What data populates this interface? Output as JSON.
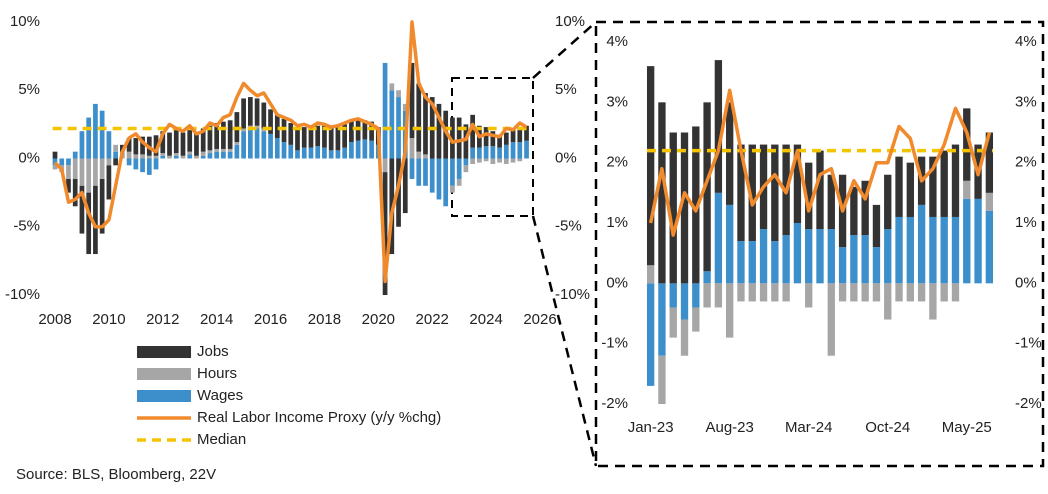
{
  "chart_data": [
    {
      "type": "bar-line",
      "x": [
        2008,
        2008.25,
        2008.5,
        2008.75,
        2009,
        2009.25,
        2009.5,
        2009.75,
        2010,
        2010.25,
        2010.5,
        2010.75,
        2011,
        2011.25,
        2011.5,
        2011.75,
        2012,
        2012.25,
        2012.5,
        2012.75,
        2013,
        2013.25,
        2013.5,
        2013.75,
        2014,
        2014.25,
        2014.5,
        2014.75,
        2015,
        2015.25,
        2015.5,
        2015.75,
        2016,
        2016.25,
        2016.5,
        2016.75,
        2017,
        2017.25,
        2017.5,
        2017.75,
        2018,
        2018.25,
        2018.5,
        2018.75,
        2019,
        2019.25,
        2019.5,
        2019.75,
        2020,
        2020.25,
        2020.5,
        2020.75,
        2021,
        2021.25,
        2021.5,
        2021.75,
        2022,
        2022.25,
        2022.5,
        2022.75,
        2023,
        2023.25,
        2023.5,
        2023.75,
        2024,
        2024.25,
        2024.5,
        2024.75,
        2025,
        2025.25,
        2025.5
      ],
      "series": [
        {
          "name": "Jobs",
          "color": "#333333",
          "values": [
            0.5,
            0,
            -1,
            -2,
            -3.5,
            -4.5,
            -5,
            -4,
            -2.5,
            -0.5,
            0.5,
            1,
            1.2,
            1.3,
            1.4,
            1.5,
            1.6,
            1.7,
            1.7,
            1.7,
            1.6,
            1.7,
            1.7,
            1.8,
            1.9,
            2,
            2.1,
            2.2,
            2.2,
            2.1,
            2,
            1.9,
            1.8,
            1.7,
            1.7,
            1.6,
            1.6,
            1.5,
            1.5,
            1.5,
            1.6,
            1.7,
            1.7,
            1.7,
            1.6,
            1.5,
            1.4,
            1.4,
            1.3,
            -9,
            -7,
            -5,
            -4,
            5.5,
            5,
            4.5,
            4.5,
            4,
            3.5,
            3,
            3,
            2.5,
            2.4,
            1.6,
            1.4,
            1.1,
            0.9,
            0.9,
            0.9,
            1.1,
            1.1
          ]
        },
        {
          "name": "Hours",
          "color": "#a6a6a6",
          "values": [
            -0.3,
            -0.5,
            -1,
            -1.5,
            -2,
            -2.5,
            -2,
            -1.5,
            -0.5,
            0.5,
            0.5,
            0.5,
            0.3,
            0.3,
            0.2,
            0.2,
            0.2,
            0.2,
            0.2,
            0.2,
            0.2,
            0.2,
            0.3,
            0.2,
            0.2,
            0.2,
            0.2,
            0.2,
            0.2,
            0.2,
            0.2,
            0.2,
            0,
            0,
            0,
            0,
            0,
            0,
            0,
            0,
            0,
            0,
            0,
            0,
            0,
            0,
            0,
            0,
            0,
            -1,
            0.5,
            0.5,
            0.5,
            1.5,
            0.5,
            0.3,
            0,
            0,
            0,
            -0.5,
            -0.5,
            -0.5,
            -0.4,
            -0.3,
            -0.2,
            -0.4,
            -0.3,
            -0.4,
            -0.3,
            -0.2,
            0
          ]
        },
        {
          "name": "Wages",
          "color": "#3d8fcc",
          "values": [
            -0.5,
            -0.5,
            -0.5,
            0.5,
            2,
            3,
            4,
            3.5,
            2,
            0.5,
            0,
            -0.5,
            -0.8,
            -1,
            -1.2,
            -0.8,
            0.2,
            0,
            0.2,
            0,
            0.3,
            0,
            0.2,
            0.4,
            0.5,
            0.5,
            0.5,
            1,
            2,
            2.2,
            2.2,
            2,
            1.8,
            1.5,
            1.2,
            1,
            0.6,
            0.8,
            0.8,
            0.9,
            0.8,
            0.6,
            0.6,
            0.8,
            1.2,
            1.3,
            1.4,
            1.3,
            1,
            7,
            5,
            4.5,
            3.5,
            -1.5,
            -2,
            -2,
            -2.5,
            -3,
            -3.5,
            -2,
            -1.5,
            -0.5,
            0.8,
            0.8,
            0.9,
            0.9,
            0.8,
            1,
            1.2,
            1.2,
            1.3
          ]
        },
        {
          "name": "Real Labor Income Proxy (y/y %chg)",
          "color": "#f08a2c",
          "kind": "line",
          "values": [
            -0.3,
            -0.8,
            -3.2,
            -3,
            -2.5,
            -4,
            -5,
            -5,
            -4.5,
            -2,
            0.5,
            1.5,
            1.8,
            1.2,
            0.8,
            0.5,
            1.8,
            2.5,
            2.2,
            2,
            2.4,
            1.8,
            2,
            2.6,
            2.4,
            3,
            3.2,
            4.5,
            5.5,
            5,
            4.6,
            4.8,
            4,
            3.2,
            3,
            2.8,
            2.4,
            2.5,
            2.3,
            2.6,
            2.5,
            2.3,
            2.4,
            2.6,
            2.8,
            2.9,
            2.7,
            2.5,
            2.2,
            -9,
            -4,
            -2,
            0.5,
            10,
            5.5,
            4.5,
            4,
            3,
            2,
            1.2,
            1.3,
            1.4,
            2.5,
            1.6,
            1.8,
            1.7,
            1.6,
            2.2,
            2.1,
            2.6,
            2.3
          ]
        }
      ],
      "median": {
        "name": "Median",
        "color": "#f5c400",
        "value": 2.2
      },
      "xlim": [
        2008,
        2026
      ],
      "xticks": [
        2008,
        2010,
        2012,
        2014,
        2016,
        2018,
        2020,
        2022,
        2024,
        2026
      ],
      "ylim": [
        -10,
        10
      ],
      "yticks": [
        {
          "value": 10,
          "label": "10%"
        },
        {
          "value": 5,
          "label": "5%"
        },
        {
          "value": 0,
          "label": "0%"
        },
        {
          "value": -5,
          "label": "-5%"
        },
        {
          "value": -10,
          "label": "-10%"
        }
      ],
      "y2lim": [
        -10,
        10
      ],
      "y2ticks": [
        {
          "value": 10,
          "label": "10%"
        },
        {
          "value": 5,
          "label": "5%"
        },
        {
          "value": 0,
          "label": "0%"
        },
        {
          "value": -5,
          "label": "-5%"
        },
        {
          "value": -10,
          "label": "-10%"
        }
      ],
      "legend": "bottom-left"
    },
    {
      "type": "bar-line",
      "categories": [
        "Jan-23",
        null,
        null,
        null,
        null,
        null,
        null,
        "Aug-23",
        null,
        null,
        null,
        null,
        null,
        null,
        "Mar-24",
        null,
        null,
        null,
        null,
        null,
        null,
        "Oct-24",
        null,
        null,
        null,
        null,
        null,
        null,
        "May-25",
        null,
        null
      ],
      "series": [
        {
          "color": "#333333",
          "values": [
            3.3,
            3,
            2.5,
            2.5,
            2.6,
            2.8,
            2.2,
            1.7,
            1.6,
            1.6,
            1.4,
            1.6,
            1.5,
            1.3,
            1.1,
            1.3,
            0.9,
            1.2,
            0.8,
            0.9,
            0.7,
            0.9,
            1,
            0.9,
            0.8,
            1,
            1.1,
            1.2,
            1.2,
            0.9,
            1
          ]
        },
        {
          "color": "#a6a6a6",
          "values": [
            0.3,
            -0.8,
            -0.5,
            -0.6,
            -0.4,
            -0.4,
            -0.4,
            -0.9,
            -0.3,
            -0.3,
            -0.3,
            -0.3,
            -0.3,
            0,
            -0.4,
            0,
            -1.2,
            -0.3,
            -0.3,
            -0.3,
            -0.3,
            -0.6,
            -0.3,
            -0.3,
            -0.3,
            -0.6,
            -0.3,
            -0.3,
            0.3,
            0,
            0.3
          ]
        },
        {
          "color": "#3d8fcc",
          "values": [
            -1.7,
            -1.2,
            -0.4,
            -0.6,
            -0.4,
            0.2,
            1.5,
            1.3,
            0.7,
            0.7,
            0.9,
            0.7,
            0.8,
            1,
            0.9,
            0.9,
            0.9,
            0.6,
            0.8,
            0.8,
            0.6,
            0.9,
            1.1,
            1.1,
            1.3,
            1.1,
            1.1,
            1.1,
            1.4,
            1.4,
            1.2
          ]
        },
        {
          "color": "#f08a2c",
          "kind": "line",
          "values": [
            1,
            1.9,
            0.8,
            1.5,
            1.2,
            1.7,
            2.2,
            3.2,
            2.2,
            1.3,
            1.6,
            1.8,
            1.5,
            2.2,
            1.2,
            1.8,
            1.9,
            1.2,
            1.7,
            1.4,
            2,
            2,
            2.6,
            2.4,
            1.7,
            1.9,
            2.3,
            2.9,
            2.5,
            1.8,
            2.5
          ]
        }
      ],
      "median": {
        "color": "#f5c400",
        "value": 2.2
      },
      "ylim": [
        -2,
        4
      ],
      "yticks": [
        {
          "value": 4,
          "label": "4%"
        },
        {
          "value": 3,
          "label": "3%"
        },
        {
          "value": 2,
          "label": "2%"
        },
        {
          "value": 1,
          "label": "1%"
        },
        {
          "value": 0,
          "label": "0%"
        },
        {
          "value": -1,
          "label": "-1%"
        },
        {
          "value": -2,
          "label": "-2%"
        }
      ],
      "y2lim": [
        -2,
        4
      ],
      "y2ticks": [
        {
          "value": 4,
          "label": "4%"
        },
        {
          "value": 3,
          "label": "3%"
        },
        {
          "value": 2,
          "label": "2%"
        },
        {
          "value": 1,
          "label": "1%"
        },
        {
          "value": 0,
          "label": "0%"
        },
        {
          "value": -1,
          "label": "-1%"
        },
        {
          "value": -2,
          "label": "-2%"
        }
      ]
    }
  ],
  "source": "Source: BLS, Bloomberg, 22V"
}
